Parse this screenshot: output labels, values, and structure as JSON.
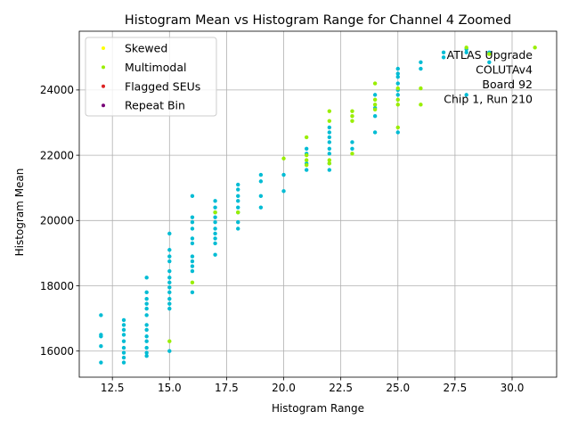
{
  "chart_data": {
    "type": "scatter",
    "title": "Histogram Mean vs Histogram Range for Channel 4 Zoomed",
    "xlabel": "Histogram Range",
    "ylabel": "Histogram Mean",
    "xlim": [
      11.05,
      31.95
    ],
    "ylim": [
      15200,
      25800
    ],
    "xticks": [
      12.5,
      15.0,
      17.5,
      20.0,
      22.5,
      25.0,
      27.5,
      30.0
    ],
    "xtick_labels": [
      "12.5",
      "15.0",
      "17.5",
      "20.0",
      "22.5",
      "25.0",
      "27.5",
      "30.0"
    ],
    "yticks": [
      16000,
      18000,
      20000,
      22000,
      24000
    ],
    "ytick_labels": [
      "16000",
      "18000",
      "20000",
      "22000",
      "24000"
    ],
    "grid": true,
    "legend_position": "top-left",
    "annotation": [
      "ATLAS Upgrade",
      "COLUTAv4",
      "Board 92",
      "Chip 1, Run 210"
    ],
    "legend": [
      {
        "name": "Skewed",
        "color": "#ffff00"
      },
      {
        "name": "Multimodal",
        "color": "#99ee00"
      },
      {
        "name": "Flagged SEUs",
        "color": "#dd2222"
      },
      {
        "name": "Repeat Bin",
        "color": "#770077"
      }
    ],
    "base_color": "#00bcd4",
    "series": [
      {
        "name": "Base",
        "color": "#00bcd4",
        "points": [
          [
            12,
            15650
          ],
          [
            12,
            16150
          ],
          [
            12,
            16450
          ],
          [
            12,
            16500
          ],
          [
            12,
            17100
          ],
          [
            13,
            15650
          ],
          [
            13,
            15800
          ],
          [
            13,
            15950
          ],
          [
            13,
            16100
          ],
          [
            13,
            16300
          ],
          [
            13,
            16500
          ],
          [
            13,
            16650
          ],
          [
            13,
            16800
          ],
          [
            13,
            16950
          ],
          [
            14,
            15850
          ],
          [
            14,
            15950
          ],
          [
            14,
            16100
          ],
          [
            14,
            16300
          ],
          [
            14,
            16450
          ],
          [
            14,
            16650
          ],
          [
            14,
            16800
          ],
          [
            14,
            17100
          ],
          [
            14,
            17300
          ],
          [
            14,
            17450
          ],
          [
            14,
            17600
          ],
          [
            14,
            17800
          ],
          [
            14,
            18250
          ],
          [
            15,
            16000
          ],
          [
            15,
            17300
          ],
          [
            15,
            17450
          ],
          [
            15,
            17600
          ],
          [
            15,
            17800
          ],
          [
            15,
            17950
          ],
          [
            15,
            18100
          ],
          [
            15,
            18250
          ],
          [
            15,
            18450
          ],
          [
            15,
            18750
          ],
          [
            15,
            18900
          ],
          [
            15,
            19100
          ],
          [
            15,
            19600
          ],
          [
            16,
            17800
          ],
          [
            16,
            18450
          ],
          [
            16,
            18600
          ],
          [
            16,
            18750
          ],
          [
            16,
            18900
          ],
          [
            16,
            19300
          ],
          [
            16,
            19450
          ],
          [
            16,
            19750
          ],
          [
            16,
            19950
          ],
          [
            16,
            20100
          ],
          [
            16,
            20750
          ],
          [
            17,
            18950
          ],
          [
            17,
            19300
          ],
          [
            17,
            19450
          ],
          [
            17,
            19600
          ],
          [
            17,
            19750
          ],
          [
            17,
            19950
          ],
          [
            17,
            20100
          ],
          [
            17,
            20250
          ],
          [
            17,
            20400
          ],
          [
            17,
            20600
          ],
          [
            18,
            19750
          ],
          [
            18,
            19950
          ],
          [
            18,
            20250
          ],
          [
            18,
            20400
          ],
          [
            18,
            20600
          ],
          [
            18,
            20750
          ],
          [
            18,
            20950
          ],
          [
            18,
            21100
          ],
          [
            19,
            20400
          ],
          [
            19,
            20750
          ],
          [
            19,
            21200
          ],
          [
            19,
            21400
          ],
          [
            20,
            20900
          ],
          [
            20,
            21400
          ],
          [
            21,
            21550
          ],
          [
            21,
            21750
          ],
          [
            21,
            22050
          ],
          [
            21,
            22200
          ],
          [
            22,
            21550
          ],
          [
            22,
            21750
          ],
          [
            22,
            22050
          ],
          [
            22,
            22200
          ],
          [
            22,
            22400
          ],
          [
            22,
            22550
          ],
          [
            22,
            22700
          ],
          [
            22,
            22850
          ],
          [
            23,
            22200
          ],
          [
            23,
            22400
          ],
          [
            24,
            22700
          ],
          [
            24,
            23200
          ],
          [
            24,
            23450
          ],
          [
            24,
            23850
          ],
          [
            25,
            22700
          ],
          [
            25,
            23850
          ],
          [
            25,
            24000
          ],
          [
            25,
            24200
          ],
          [
            25,
            24400
          ],
          [
            25,
            24500
          ],
          [
            25,
            24650
          ],
          [
            26,
            24650
          ],
          [
            26,
            24850
          ],
          [
            27,
            25000
          ],
          [
            27,
            25150
          ],
          [
            28,
            23850
          ],
          [
            28,
            25150
          ],
          [
            28,
            25250
          ],
          [
            29,
            24850
          ],
          [
            29,
            25150
          ]
        ]
      },
      {
        "name": "Multimodal",
        "color": "#99ee00",
        "points": [
          [
            15,
            16300
          ],
          [
            16,
            18100
          ],
          [
            17,
            20250
          ],
          [
            18,
            20250
          ],
          [
            20,
            21900
          ],
          [
            21,
            21700
          ],
          [
            21,
            21850
          ],
          [
            21,
            22000
          ],
          [
            21,
            22550
          ],
          [
            22,
            21750
          ],
          [
            22,
            21850
          ],
          [
            22,
            23050
          ],
          [
            22,
            23350
          ],
          [
            23,
            22050
          ],
          [
            23,
            23050
          ],
          [
            23,
            23200
          ],
          [
            23,
            23350
          ],
          [
            24,
            23400
          ],
          [
            24,
            23550
          ],
          [
            24,
            23700
          ],
          [
            24,
            24200
          ],
          [
            25,
            22850
          ],
          [
            25,
            23550
          ],
          [
            25,
            23700
          ],
          [
            25,
            24050
          ],
          [
            26,
            23550
          ],
          [
            26,
            24050
          ],
          [
            28,
            25300
          ],
          [
            29,
            25100
          ],
          [
            31,
            25300
          ]
        ]
      }
    ]
  }
}
